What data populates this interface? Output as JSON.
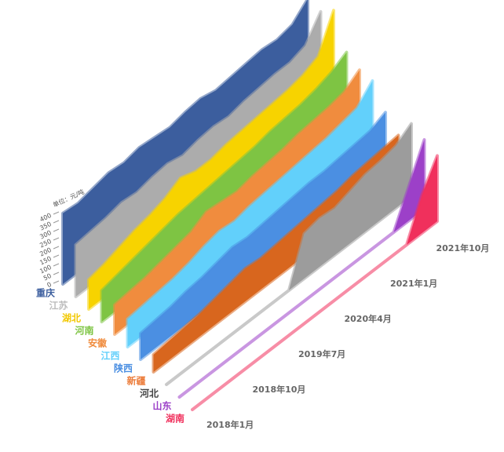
{
  "chart_data": {
    "type": "ribbon3d",
    "y_axis_label": "单位：元/吨",
    "ylim": [
      0,
      400
    ],
    "yticks": [
      0,
      50,
      100,
      150,
      200,
      250,
      300,
      350,
      400
    ],
    "categories": [
      "2018年1月",
      null,
      null,
      "2018年10月",
      null,
      null,
      "2019年7月",
      null,
      null,
      "2020年4月",
      null,
      null,
      "2021年1月",
      null,
      null,
      "2021年10月",
      null
    ],
    "series": [
      {
        "name": "重庆",
        "color": "#3c5e9e",
        "label_color": "#3c5e9e",
        "values": [
          410,
          400,
          420,
          440,
          430,
          450,
          440,
          430,
          450,
          460,
          440,
          450,
          460,
          470,
          460,
          480,
          560
        ]
      },
      {
        "name": "江苏",
        "color": "#acacac",
        "label_color": "#bdbdbd",
        "values": [
          300,
          310,
          320,
          340,
          330,
          350,
          360,
          340,
          360,
          370,
          360,
          380,
          390,
          400,
          400,
          430,
          560
        ]
      },
      {
        "name": "湖北",
        "color": "#f7d300",
        "label_color": "#f2c800",
        "values": [
          170,
          190,
          220,
          250,
          270,
          300,
          350,
          320,
          320,
          340,
          350,
          360,
          370,
          380,
          400,
          440,
          640
        ]
      },
      {
        "name": "河南",
        "color": "#7ec443",
        "label_color": "#7ec443",
        "values": [
          180,
          200,
          220,
          240,
          260,
          280,
          290,
          300,
          310,
          320,
          330,
          350,
          360,
          370,
          390,
          420,
          470
        ]
      },
      {
        "name": "安徽",
        "color": "#f08c3e",
        "label_color": "#f08c3e",
        "values": [
          170,
          180,
          190,
          210,
          230,
          250,
          300,
          290,
          280,
          300,
          310,
          320,
          340,
          350,
          360,
          380,
          440
        ]
      },
      {
        "name": "江西",
        "color": "#62d0fb",
        "label_color": "#62d0fb",
        "values": [
          160,
          170,
          180,
          190,
          210,
          240,
          260,
          250,
          270,
          280,
          290,
          300,
          310,
          320,
          340,
          360,
          450
        ]
      },
      {
        "name": "陕西",
        "color": "#4b8fe2",
        "label_color": "#4b8fe2",
        "values": [
          150,
          160,
          170,
          190,
          200,
          220,
          240,
          230,
          240,
          250,
          260,
          270,
          270,
          280,
          290,
          300,
          340
        ]
      },
      {
        "name": "新疆",
        "color": "#d8661e",
        "label_color": "#ec7d3c",
        "values": [
          100,
          110,
          120,
          130,
          150,
          170,
          190,
          180,
          190,
          200,
          210,
          220,
          230,
          250,
          260,
          270,
          280
        ]
      },
      {
        "name": "河北",
        "color": "#9c9c9c",
        "label_color": "#444444",
        "values": [
          0,
          0,
          0,
          0,
          0,
          0,
          0,
          0,
          0,
          260,
          280,
          270,
          300,
          330,
          340,
          360,
          420
        ]
      },
      {
        "name": "山东",
        "color": "#9c40c8",
        "label_color": "#9c40c8",
        "values": [
          0,
          0,
          0,
          0,
          0,
          0,
          0,
          0,
          0,
          0,
          0,
          0,
          0,
          0,
          0,
          200,
          400
        ]
      },
      {
        "name": "湖南",
        "color": "#f0305c",
        "label_color": "#f0305c",
        "values": [
          0,
          0,
          0,
          0,
          0,
          0,
          0,
          0,
          0,
          0,
          0,
          0,
          0,
          0,
          0,
          220,
          380
        ]
      }
    ]
  }
}
